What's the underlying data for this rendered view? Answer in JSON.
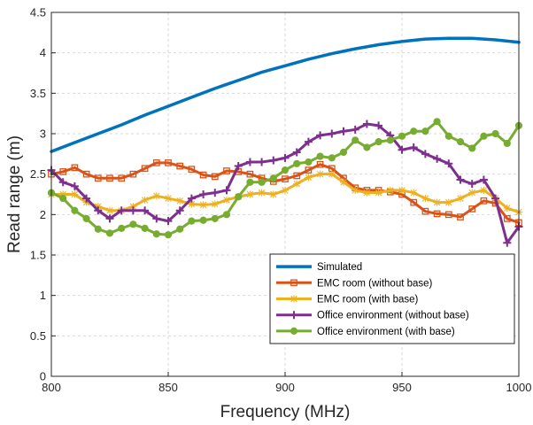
{
  "chart_data": {
    "type": "line",
    "xlabel": "Frequency (MHz)",
    "ylabel": "Read range (m)",
    "xlim": [
      800,
      1000
    ],
    "ylim": [
      0,
      4.5
    ],
    "xticks": [
      "800",
      "850",
      "900",
      "950",
      "1000"
    ],
    "yticks": [
      "0",
      "0.5",
      "1",
      "1.5",
      "2",
      "2.5",
      "3",
      "3.5",
      "4",
      "4.5"
    ],
    "grid": true,
    "legend_position": "bottom-right",
    "series": [
      {
        "name": "Simulated",
        "color": "#0072BD",
        "marker": "none",
        "x": [
          800,
          810,
          820,
          830,
          840,
          850,
          860,
          870,
          880,
          890,
          900,
          910,
          920,
          930,
          940,
          950,
          960,
          970,
          980,
          990,
          1000
        ],
        "y": [
          2.78,
          2.89,
          3.0,
          3.11,
          3.23,
          3.34,
          3.45,
          3.56,
          3.66,
          3.76,
          3.84,
          3.92,
          3.99,
          4.05,
          4.1,
          4.14,
          4.17,
          4.18,
          4.18,
          4.16,
          4.13
        ]
      },
      {
        "name": "EMC room (without base)",
        "color": "#D95319",
        "marker": "square",
        "x": [
          800,
          805,
          810,
          815,
          820,
          825,
          830,
          835,
          840,
          845,
          850,
          855,
          860,
          865,
          870,
          875,
          880,
          885,
          890,
          895,
          900,
          905,
          910,
          915,
          920,
          925,
          930,
          935,
          940,
          945,
          950,
          955,
          960,
          965,
          970,
          975,
          980,
          985,
          990,
          995,
          1000
        ],
        "y": [
          2.5,
          2.53,
          2.58,
          2.5,
          2.45,
          2.45,
          2.45,
          2.5,
          2.57,
          2.64,
          2.64,
          2.6,
          2.56,
          2.49,
          2.47,
          2.54,
          2.53,
          2.5,
          2.45,
          2.41,
          2.44,
          2.48,
          2.55,
          2.62,
          2.57,
          2.45,
          2.33,
          2.3,
          2.3,
          2.28,
          2.25,
          2.15,
          2.04,
          2.01,
          2.0,
          1.97,
          2.07,
          2.17,
          2.14,
          1.95,
          1.9
        ]
      },
      {
        "name": "EMC room (with base)",
        "color": "#EDB120",
        "marker": "asterisk",
        "x": [
          800,
          805,
          810,
          815,
          820,
          825,
          830,
          835,
          840,
          845,
          850,
          855,
          860,
          865,
          870,
          875,
          880,
          885,
          890,
          895,
          900,
          905,
          910,
          915,
          920,
          925,
          930,
          935,
          940,
          945,
          950,
          955,
          960,
          965,
          970,
          975,
          980,
          985,
          990,
          995,
          1000
        ],
        "y": [
          2.25,
          2.25,
          2.25,
          2.15,
          2.1,
          2.05,
          2.05,
          2.1,
          2.18,
          2.23,
          2.2,
          2.17,
          2.13,
          2.12,
          2.13,
          2.18,
          2.22,
          2.25,
          2.27,
          2.25,
          2.3,
          2.38,
          2.46,
          2.5,
          2.5,
          2.4,
          2.3,
          2.27,
          2.27,
          2.3,
          2.3,
          2.27,
          2.2,
          2.15,
          2.15,
          2.2,
          2.27,
          2.3,
          2.2,
          2.08,
          2.03
        ]
      },
      {
        "name": "Office environment (without base)",
        "color": "#7E2F8E",
        "marker": "plus",
        "x": [
          800,
          805,
          810,
          815,
          820,
          825,
          830,
          835,
          840,
          845,
          850,
          855,
          860,
          865,
          870,
          875,
          880,
          885,
          890,
          895,
          900,
          905,
          910,
          915,
          920,
          925,
          930,
          935,
          940,
          945,
          950,
          955,
          960,
          965,
          970,
          975,
          980,
          985,
          990,
          995,
          1000
        ],
        "y": [
          2.55,
          2.4,
          2.35,
          2.2,
          2.05,
          1.95,
          2.05,
          2.05,
          2.05,
          1.95,
          1.92,
          2.05,
          2.2,
          2.25,
          2.27,
          2.3,
          2.6,
          2.65,
          2.65,
          2.67,
          2.7,
          2.77,
          2.9,
          2.98,
          3.0,
          3.03,
          3.05,
          3.12,
          3.1,
          2.98,
          2.8,
          2.83,
          2.75,
          2.69,
          2.63,
          2.43,
          2.38,
          2.43,
          2.2,
          1.65,
          1.85
        ]
      },
      {
        "name": "Office environment (with base)",
        "color": "#77AC30",
        "marker": "circle",
        "x": [
          800,
          805,
          810,
          815,
          820,
          825,
          830,
          835,
          840,
          845,
          850,
          855,
          860,
          865,
          870,
          875,
          880,
          885,
          890,
          895,
          900,
          905,
          910,
          915,
          920,
          925,
          930,
          935,
          940,
          945,
          950,
          955,
          960,
          965,
          970,
          975,
          980,
          985,
          990,
          995,
          1000
        ],
        "y": [
          2.27,
          2.2,
          2.05,
          1.95,
          1.82,
          1.77,
          1.83,
          1.88,
          1.83,
          1.76,
          1.75,
          1.82,
          1.92,
          1.93,
          1.95,
          2.0,
          2.22,
          2.4,
          2.4,
          2.45,
          2.55,
          2.63,
          2.65,
          2.72,
          2.7,
          2.77,
          2.92,
          2.83,
          2.9,
          2.92,
          2.97,
          3.03,
          3.03,
          3.15,
          2.97,
          2.9,
          2.82,
          2.97,
          3.0,
          2.88,
          3.1
        ]
      }
    ]
  }
}
